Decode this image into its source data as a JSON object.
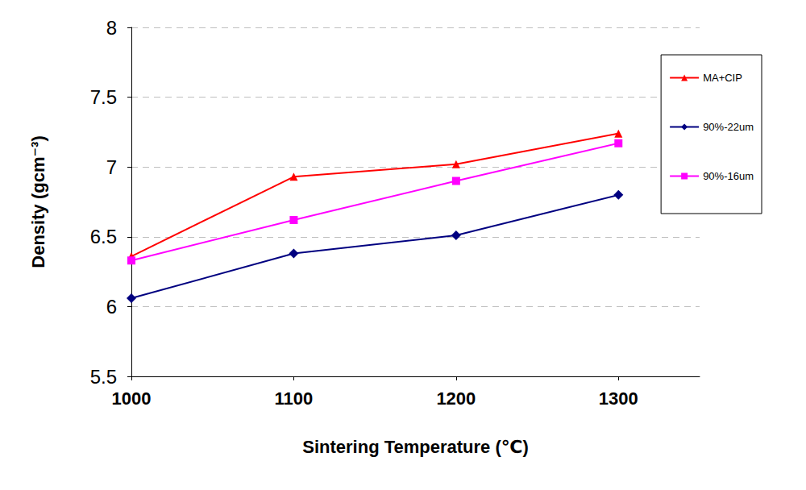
{
  "chart_data": {
    "type": "line",
    "x_label": "Sintering Temperature (℃)",
    "y_label": "Density (gcm⁻³)",
    "x": [
      1000,
      1100,
      1200,
      1300
    ],
    "series": [
      {
        "name": "MA+CIP",
        "color": "#ff0000",
        "marker": "triangle",
        "values": [
          6.36,
          6.93,
          7.02,
          7.24
        ]
      },
      {
        "name": "90%-22um",
        "color": "#000080",
        "marker": "diamond",
        "values": [
          6.06,
          6.38,
          6.51,
          6.8
        ]
      },
      {
        "name": "90%-16um",
        "color": "#ff00ff",
        "marker": "square",
        "values": [
          6.33,
          6.62,
          6.9,
          7.17
        ]
      }
    ],
    "xlim": [
      1000,
      1350
    ],
    "xticks": [
      1000,
      1100,
      1200,
      1300
    ],
    "ylim": [
      5.5,
      8
    ],
    "yticks": [
      5.5,
      6,
      6.5,
      7,
      7.5,
      8
    ],
    "grid": true,
    "legend": "right"
  }
}
